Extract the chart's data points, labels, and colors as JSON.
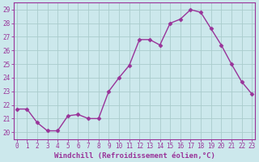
{
  "x": [
    0,
    1,
    2,
    3,
    4,
    5,
    6,
    7,
    8,
    9,
    10,
    11,
    12,
    13,
    14,
    15,
    16,
    17,
    18,
    19,
    20,
    21,
    22,
    23
  ],
  "y": [
    21.7,
    21.7,
    20.7,
    20.1,
    20.1,
    21.2,
    21.3,
    21.0,
    21.0,
    23.0,
    24.0,
    24.9,
    26.8,
    26.8,
    26.4,
    28.0,
    28.3,
    29.0,
    28.8,
    27.6,
    26.4,
    25.0,
    23.7,
    22.8
  ],
  "line_color": "#993399",
  "marker": "D",
  "markersize": 2.5,
  "linewidth": 1.0,
  "bg_color": "#cce8ec",
  "grid_color": "#aacccc",
  "xlabel": "Windchill (Refroidissement éolien,°C)",
  "tick_color": "#993399",
  "ylim": [
    19.5,
    29.5
  ],
  "yticks": [
    20,
    21,
    22,
    23,
    24,
    25,
    26,
    27,
    28,
    29
  ],
  "xticks": [
    0,
    1,
    2,
    3,
    4,
    5,
    6,
    7,
    8,
    9,
    10,
    11,
    12,
    13,
    14,
    15,
    16,
    17,
    18,
    19,
    20,
    21,
    22,
    23
  ],
  "xtick_labels": [
    "0",
    "1",
    "2",
    "3",
    "4",
    "5",
    "6",
    "7",
    "8",
    "9",
    "10",
    "11",
    "12",
    "13",
    "14",
    "15",
    "16",
    "17",
    "18",
    "19",
    "20",
    "21",
    "22",
    "23"
  ],
  "xlim": [
    -0.3,
    23.3
  ],
  "tick_fontsize": 5.5,
  "xlabel_fontsize": 6.5
}
